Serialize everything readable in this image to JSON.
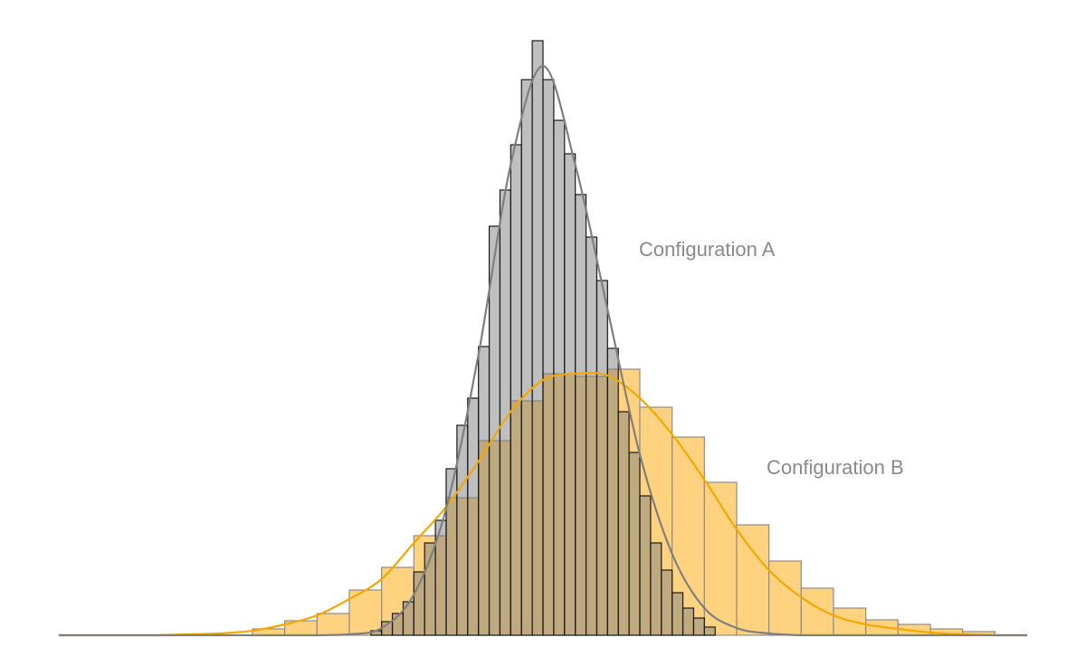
{
  "chart_data": {
    "type": "histogram",
    "xlim": [
      -45,
      45
    ],
    "ylim": [
      0,
      700
    ],
    "curve_x": [
      -45,
      -42,
      -39,
      -36,
      -33,
      -30,
      -27,
      -24,
      -21,
      -18,
      -15,
      -12,
      -9,
      -6,
      -3,
      0,
      3,
      6,
      9,
      12,
      15,
      18,
      21,
      24,
      27,
      30,
      33,
      36,
      39,
      42,
      45
    ],
    "series": [
      {
        "name": "Configuration B",
        "color": "#ffd27f",
        "edge_color": "#8c8c8c",
        "curve_color": "#f5a800",
        "bins": [
          -27,
          -24,
          -21,
          -18,
          -15,
          -12,
          -9,
          -6,
          -3,
          0,
          3,
          6,
          9,
          12,
          15,
          18,
          21,
          24,
          27,
          30,
          33,
          36,
          39,
          42
        ],
        "values": [
          7,
          16,
          24,
          50,
          75,
          110,
          152,
          215,
          259,
          289,
          286,
          294,
          252,
          219,
          169,
          122,
          82,
          52,
          30,
          17,
          12,
          7,
          4
        ],
        "curve": [
          0,
          0,
          0,
          0,
          1,
          2,
          5,
          12,
          22,
          40,
          62,
          102,
          142,
          192,
          247,
          282,
          289,
          287,
          262,
          222,
          172,
          117,
          72,
          42,
          22,
          12,
          7,
          3,
          1,
          0,
          0
        ]
      },
      {
        "name": "Configuration A",
        "color": "rgba(127,127,127,0.5)",
        "edge_color": "#1a1a1a",
        "curve_color": "#7f7f7f",
        "bins": [
          -16,
          -15,
          -14,
          -13,
          -12,
          -11,
          -10,
          -9,
          -8,
          -7,
          -6,
          -5,
          -4,
          -3,
          -2,
          -1,
          0,
          1,
          2,
          3,
          4,
          5,
          6,
          7,
          8,
          9,
          10,
          11,
          12,
          13,
          14,
          15,
          16
        ],
        "values": [
          5,
          15,
          24,
          37,
          70,
          102,
          127,
          184,
          232,
          262,
          319,
          452,
          492,
          542,
          614,
          657,
          614,
          569,
          532,
          487,
          440,
          392,
          317,
          247,
          202,
          154,
          102,
          72,
          47,
          30,
          19,
          9
        ],
        "curve": [
          0,
          0,
          0,
          0,
          0,
          0,
          0,
          0,
          0,
          1,
          8,
          45,
          140,
          310,
          520,
          629,
          520,
          360,
          200,
          90,
          30,
          8,
          2,
          0,
          0,
          0,
          0,
          0,
          0,
          0,
          0
        ]
      }
    ]
  }
}
